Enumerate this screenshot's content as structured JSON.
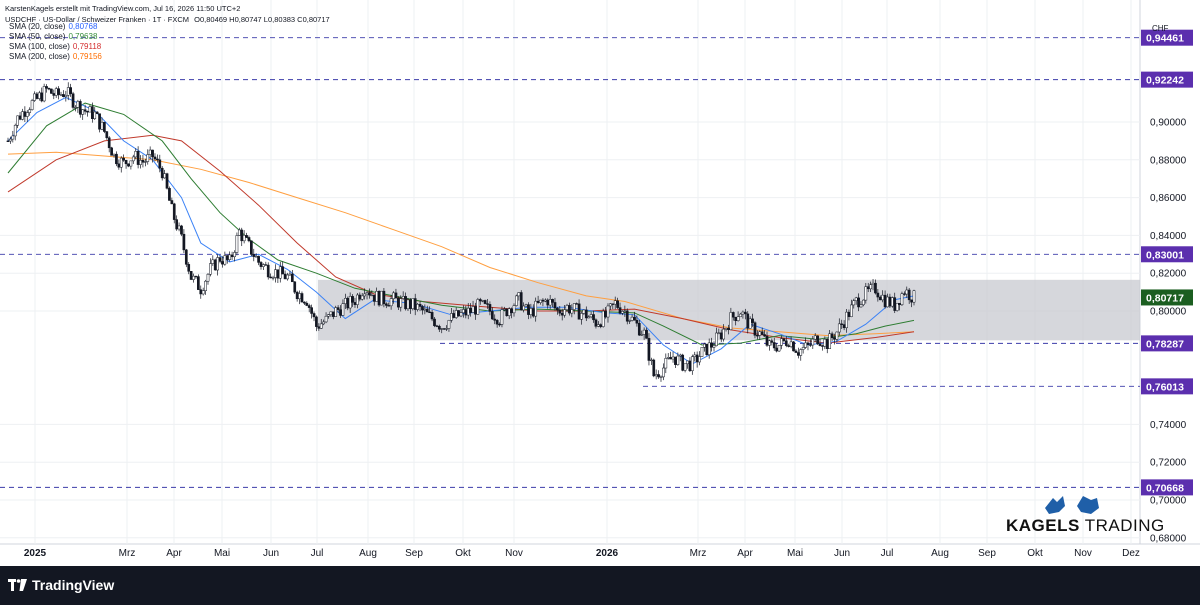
{
  "header": {
    "title": "KarstenKagels erstellt mit TradingView.com, Jul 16, 2026 11:50 UTC+2",
    "symbol_line": "USDCHF · US-Dollar / Schweizer Franken · 1T · FXCM",
    "ohlc": "O0,80469 H0,80747 L0,80383 C0,80717"
  },
  "legend": [
    {
      "label": "SMA (20, close)",
      "value": "0,80768",
      "color": "#2962ff"
    },
    {
      "label": "SMA (50, close)",
      "value": "0,79638",
      "color": "#388e3c"
    },
    {
      "label": "SMA (100, close)",
      "value": "0,79118",
      "color": "#d32f2f"
    },
    {
      "label": "SMA (200, close)",
      "value": "0,79156",
      "color": "#ff6d00"
    }
  ],
  "currency": "CHF",
  "price_axis": {
    "ticks": [
      "0,90000",
      "0,88000",
      "0,86000",
      "0,84000",
      "0,82000",
      "0,80000",
      "0,74000",
      "0,72000",
      "0,70000",
      "0,68000"
    ],
    "levels": [
      {
        "value": "0,94461",
        "text": "0,94461",
        "kind": "purple"
      },
      {
        "value": "0,92242",
        "text": "0,92242",
        "kind": "purple"
      },
      {
        "value": "0,83001",
        "text": "0,83001",
        "kind": "purple"
      },
      {
        "value": "0,80717",
        "text": "0,80717",
        "kind": "green"
      },
      {
        "value": "0,78287",
        "text": "0,78287",
        "kind": "purple"
      },
      {
        "value": "0,76013",
        "text": "0,76013",
        "kind": "purple"
      },
      {
        "value": "0,70668",
        "text": "0,70668",
        "kind": "purple"
      }
    ]
  },
  "time_axis": [
    "2025",
    "Mrz",
    "Apr",
    "Mai",
    "Jun",
    "Jul",
    "Aug",
    "Sep",
    "Okt",
    "Nov",
    "2026",
    "Mrz",
    "Apr",
    "Mai",
    "Jun",
    "Jul",
    "Aug",
    "Sep",
    "Okt",
    "Nov",
    "Dez"
  ],
  "brand": {
    "bold": "KAGELS",
    "light": " TRADING"
  },
  "footer": {
    "logo_text": "TradingView"
  },
  "chart_data": {
    "type": "candlestick",
    "symbol": "USDCHF",
    "interval": "1T",
    "ylim": [
      0.67,
      0.95
    ],
    "range_box": {
      "low": 0.7845,
      "high": 0.8165
    },
    "horizontal_levels": [
      0.94461,
      0.92242,
      0.83001,
      0.78287,
      0.76013,
      0.70668
    ],
    "last_price": 0.80717,
    "candles_close_path": [
      [
        0,
        0.89
      ],
      [
        2,
        0.902
      ],
      [
        4,
        0.908
      ],
      [
        6,
        0.912
      ],
      [
        8,
        0.917
      ],
      [
        10,
        0.914
      ],
      [
        12,
        0.916
      ],
      [
        14,
        0.91
      ],
      [
        16,
        0.906
      ],
      [
        18,
        0.904
      ],
      [
        20,
        0.895
      ],
      [
        22,
        0.882
      ],
      [
        24,
        0.878
      ],
      [
        26,
        0.882
      ],
      [
        28,
        0.879
      ],
      [
        30,
        0.882
      ],
      [
        32,
        0.874
      ],
      [
        34,
        0.853
      ],
      [
        36,
        0.838
      ],
      [
        38,
        0.818
      ],
      [
        40,
        0.812
      ],
      [
        42,
        0.822
      ],
      [
        44,
        0.828
      ],
      [
        46,
        0.826
      ],
      [
        48,
        0.842
      ],
      [
        50,
        0.834
      ],
      [
        52,
        0.826
      ],
      [
        54,
        0.822
      ],
      [
        56,
        0.82
      ],
      [
        58,
        0.818
      ],
      [
        60,
        0.81
      ],
      [
        62,
        0.806
      ],
      [
        64,
        0.792
      ],
      [
        66,
        0.795
      ],
      [
        68,
        0.8
      ],
      [
        70,
        0.803
      ],
      [
        72,
        0.806
      ],
      [
        74,
        0.813
      ],
      [
        76,
        0.808
      ],
      [
        78,
        0.806
      ],
      [
        80,
        0.806
      ],
      [
        82,
        0.804
      ],
      [
        84,
        0.803
      ],
      [
        86,
        0.8
      ],
      [
        88,
        0.796
      ],
      [
        90,
        0.792
      ],
      [
        92,
        0.796
      ],
      [
        94,
        0.798
      ],
      [
        96,
        0.8
      ],
      [
        98,
        0.803
      ],
      [
        100,
        0.8
      ],
      [
        102,
        0.796
      ],
      [
        104,
        0.802
      ],
      [
        106,
        0.806
      ],
      [
        108,
        0.798
      ],
      [
        110,
        0.803
      ],
      [
        112,
        0.806
      ],
      [
        114,
        0.8
      ],
      [
        116,
        0.802
      ],
      [
        118,
        0.8
      ],
      [
        120,
        0.798
      ],
      [
        122,
        0.794
      ],
      [
        124,
        0.797
      ],
      [
        126,
        0.804
      ],
      [
        128,
        0.8
      ],
      [
        130,
        0.794
      ],
      [
        132,
        0.788
      ],
      [
        134,
        0.766
      ],
      [
        136,
        0.77
      ],
      [
        138,
        0.776
      ],
      [
        140,
        0.772
      ],
      [
        142,
        0.772
      ],
      [
        144,
        0.778
      ],
      [
        146,
        0.782
      ],
      [
        148,
        0.788
      ],
      [
        150,
        0.796
      ],
      [
        152,
        0.8
      ],
      [
        154,
        0.792
      ],
      [
        156,
        0.788
      ],
      [
        158,
        0.781
      ],
      [
        160,
        0.782
      ],
      [
        162,
        0.785
      ],
      [
        164,
        0.779
      ],
      [
        166,
        0.781
      ],
      [
        168,
        0.786
      ],
      [
        170,
        0.783
      ],
      [
        172,
        0.789
      ],
      [
        174,
        0.797
      ],
      [
        176,
        0.805
      ],
      [
        178,
        0.809
      ],
      [
        180,
        0.812
      ],
      [
        182,
        0.806
      ],
      [
        184,
        0.803
      ],
      [
        186,
        0.811
      ],
      [
        188,
        0.807
      ]
    ]
  }
}
